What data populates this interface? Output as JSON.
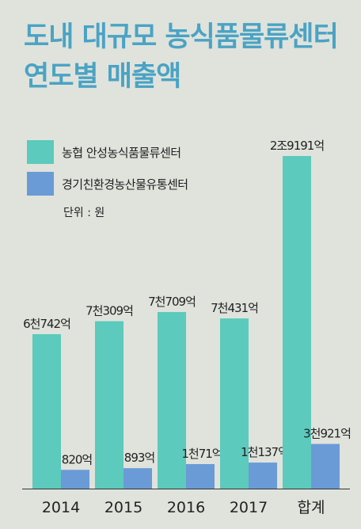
{
  "title": {
    "line1": "도내 대규모 농식품물류센터",
    "line2": "연도별 매출액"
  },
  "unit_label": "단위 : 원",
  "colors": {
    "background": "#dfe3dc",
    "title": "#4aa3c4",
    "series1": "#5ccabc",
    "series2": "#6a9bd6"
  },
  "chart_data": {
    "type": "bar",
    "categories": [
      "2014",
      "2015",
      "2016",
      "2017",
      "합계"
    ],
    "series": [
      {
        "name": "농협 안성농식품물류센터",
        "values": [
          6742,
          7309,
          7709,
          7431,
          29191
        ],
        "labels": [
          "6천742억",
          "7천309억",
          "7천709억",
          "7천431억",
          "2조9191억"
        ]
      },
      {
        "name": "경기친환경농산물유통센터",
        "values": [
          820,
          893,
          1071,
          1137,
          3921
        ],
        "labels": [
          "820억",
          "893억",
          "1천71억",
          "1천137억",
          "3천921억"
        ]
      }
    ],
    "value_unit": "억원",
    "legend_position": "top-left",
    "grid": false
  }
}
